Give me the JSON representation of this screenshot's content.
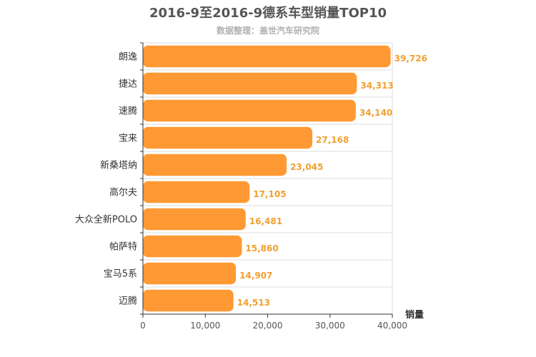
{
  "chart_data": {
    "type": "bar",
    "orientation": "horizontal",
    "title": "2016-9至2016-9德系车型销量TOP10",
    "subtitle": "数据整理：盖世汽车研究院",
    "xlabel": "销量",
    "ylabel": "",
    "categories": [
      "朗逸",
      "捷达",
      "速腾",
      "宝来",
      "新桑塔纳",
      "高尔夫",
      "大众全新POLO",
      "帕萨特",
      "宝马5系",
      "迈腾"
    ],
    "values": [
      39726,
      34313,
      34140,
      27168,
      23045,
      17105,
      16481,
      15860,
      14907,
      14513
    ],
    "value_labels": [
      "39,726",
      "34,313",
      "34,140",
      "27,168",
      "23,045",
      "17,105",
      "16,481",
      "15,860",
      "14,907",
      "14,513"
    ],
    "xlim": [
      0,
      40000
    ],
    "xticks": [
      0,
      10000,
      20000,
      30000,
      40000
    ],
    "xtick_labels": [
      "0",
      "10,000",
      "20,000",
      "30,000",
      "40,000"
    ],
    "grid": true,
    "legend": "none",
    "colors": {
      "bar": "#ff9933",
      "value_label": "#f0a030",
      "grid": "#dddddd",
      "axis": "#333333"
    }
  }
}
